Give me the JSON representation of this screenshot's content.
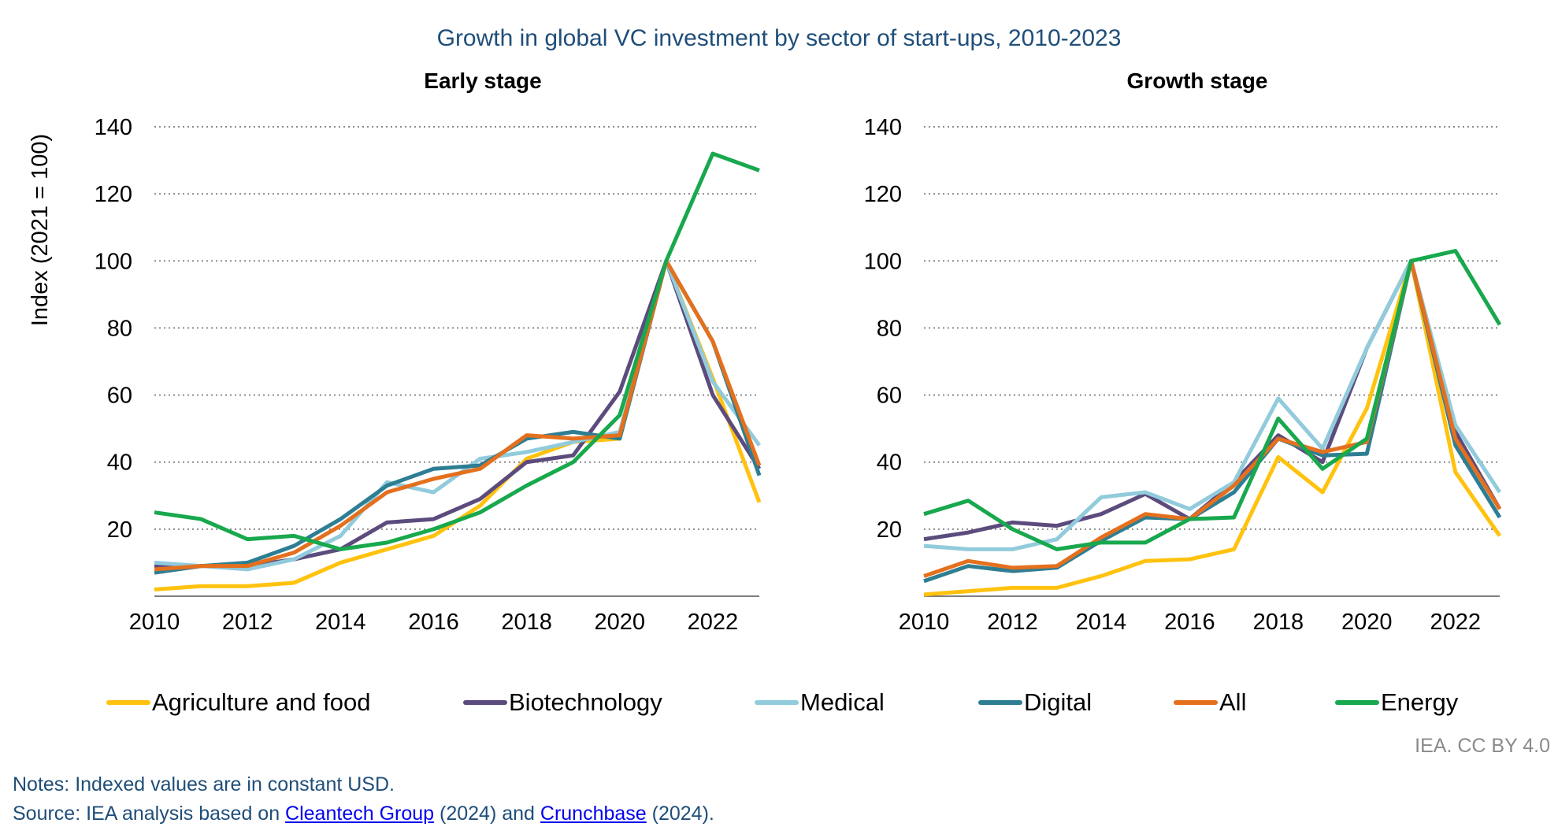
{
  "title": "Growth in global VC investment by sector of start-ups, 2010-2023",
  "credit": "IEA. CC BY 4.0",
  "notes": {
    "line1": "Notes: Indexed values are in constant USD.",
    "source_prefix": "Source: IEA analysis based on ",
    "source_link1": "Cleantech Group",
    "source_mid": " (2024) and ",
    "source_link2": "Crunchbase",
    "source_suffix": " (2024)."
  },
  "colors": {
    "Agriculture and food": "#ffc20e",
    "Biotechnology": "#5c4b7d",
    "Medical": "#91cbdc",
    "Digital": "#2e7e93",
    "All": "#e4701e",
    "Energy": "#18a84d"
  },
  "legend": [
    "Agriculture and food",
    "Biotechnology",
    "Medical",
    "Digital",
    "All",
    "Energy"
  ],
  "chart_data": [
    {
      "type": "line",
      "title": "Early stage",
      "ylabel": "Index (2021 = 100)",
      "xlabel": "",
      "x": [
        2010,
        2011,
        2012,
        2013,
        2014,
        2015,
        2016,
        2017,
        2018,
        2019,
        2020,
        2021,
        2022,
        2023
      ],
      "xticks": [
        2010,
        2012,
        2014,
        2016,
        2018,
        2020,
        2022
      ],
      "yticks": [
        20,
        40,
        60,
        80,
        100,
        120,
        140
      ],
      "ylim": [
        0,
        140
      ],
      "grid": "horizontal dotted",
      "series": [
        {
          "name": "Agriculture and food",
          "values": [
            2,
            3,
            3,
            4,
            10,
            14,
            18,
            27,
            41,
            46,
            47,
            100,
            65,
            28
          ]
        },
        {
          "name": "Biotechnology",
          "values": [
            9,
            9,
            9,
            11,
            14,
            22,
            23,
            29,
            40,
            42,
            61,
            100,
            60,
            38
          ]
        },
        {
          "name": "Medical",
          "values": [
            10,
            9,
            8,
            11,
            18,
            34,
            31,
            41,
            43,
            46,
            49,
            100,
            64,
            45
          ]
        },
        {
          "name": "Digital",
          "values": [
            7,
            9,
            10,
            15,
            23,
            33,
            38,
            39,
            47,
            49,
            47,
            100,
            76,
            36
          ]
        },
        {
          "name": "All",
          "values": [
            8,
            9,
            9,
            13,
            21,
            31,
            35,
            38,
            48,
            47,
            48,
            100,
            76,
            39
          ]
        },
        {
          "name": "Energy",
          "values": [
            25,
            23,
            17,
            18,
            14,
            16,
            20,
            25,
            33,
            40,
            54,
            100,
            132,
            127
          ]
        }
      ]
    },
    {
      "type": "line",
      "title": "Growth stage",
      "ylabel": "",
      "xlabel": "",
      "x": [
        2010,
        2011,
        2012,
        2013,
        2014,
        2015,
        2016,
        2017,
        2018,
        2019,
        2020,
        2021,
        2022,
        2023
      ],
      "xticks": [
        2010,
        2012,
        2014,
        2016,
        2018,
        2020,
        2022
      ],
      "yticks": [
        20,
        40,
        60,
        80,
        100,
        120,
        140
      ],
      "ylim": [
        0,
        140
      ],
      "grid": "horizontal dotted",
      "series": [
        {
          "name": "Agriculture and food",
          "values": [
            0.5,
            1.5,
            2.5,
            2.5,
            6,
            10.5,
            11,
            14,
            41.5,
            31,
            56,
            100,
            37,
            18
          ]
        },
        {
          "name": "Biotechnology",
          "values": [
            17,
            19,
            22,
            21,
            24.5,
            30.5,
            23,
            34,
            48,
            40,
            74,
            100,
            49,
            26
          ]
        },
        {
          "name": "Medical",
          "values": [
            15,
            14,
            14,
            17,
            29.5,
            31,
            26,
            34,
            59,
            44,
            74,
            100,
            51,
            31
          ]
        },
        {
          "name": "Digital",
          "values": [
            4.5,
            9,
            7.5,
            8.5,
            16.5,
            23.5,
            23,
            31,
            47,
            42,
            42.5,
            100,
            45,
            23.5
          ]
        },
        {
          "name": "All",
          "values": [
            6,
            10.5,
            8.5,
            9,
            17.5,
            24.5,
            23,
            33,
            47,
            43,
            46,
            100,
            47,
            26
          ]
        },
        {
          "name": "Energy",
          "values": [
            24.5,
            28.5,
            20,
            14,
            16,
            16,
            23,
            23.5,
            53,
            38,
            47,
            100,
            103,
            81
          ]
        }
      ]
    }
  ]
}
